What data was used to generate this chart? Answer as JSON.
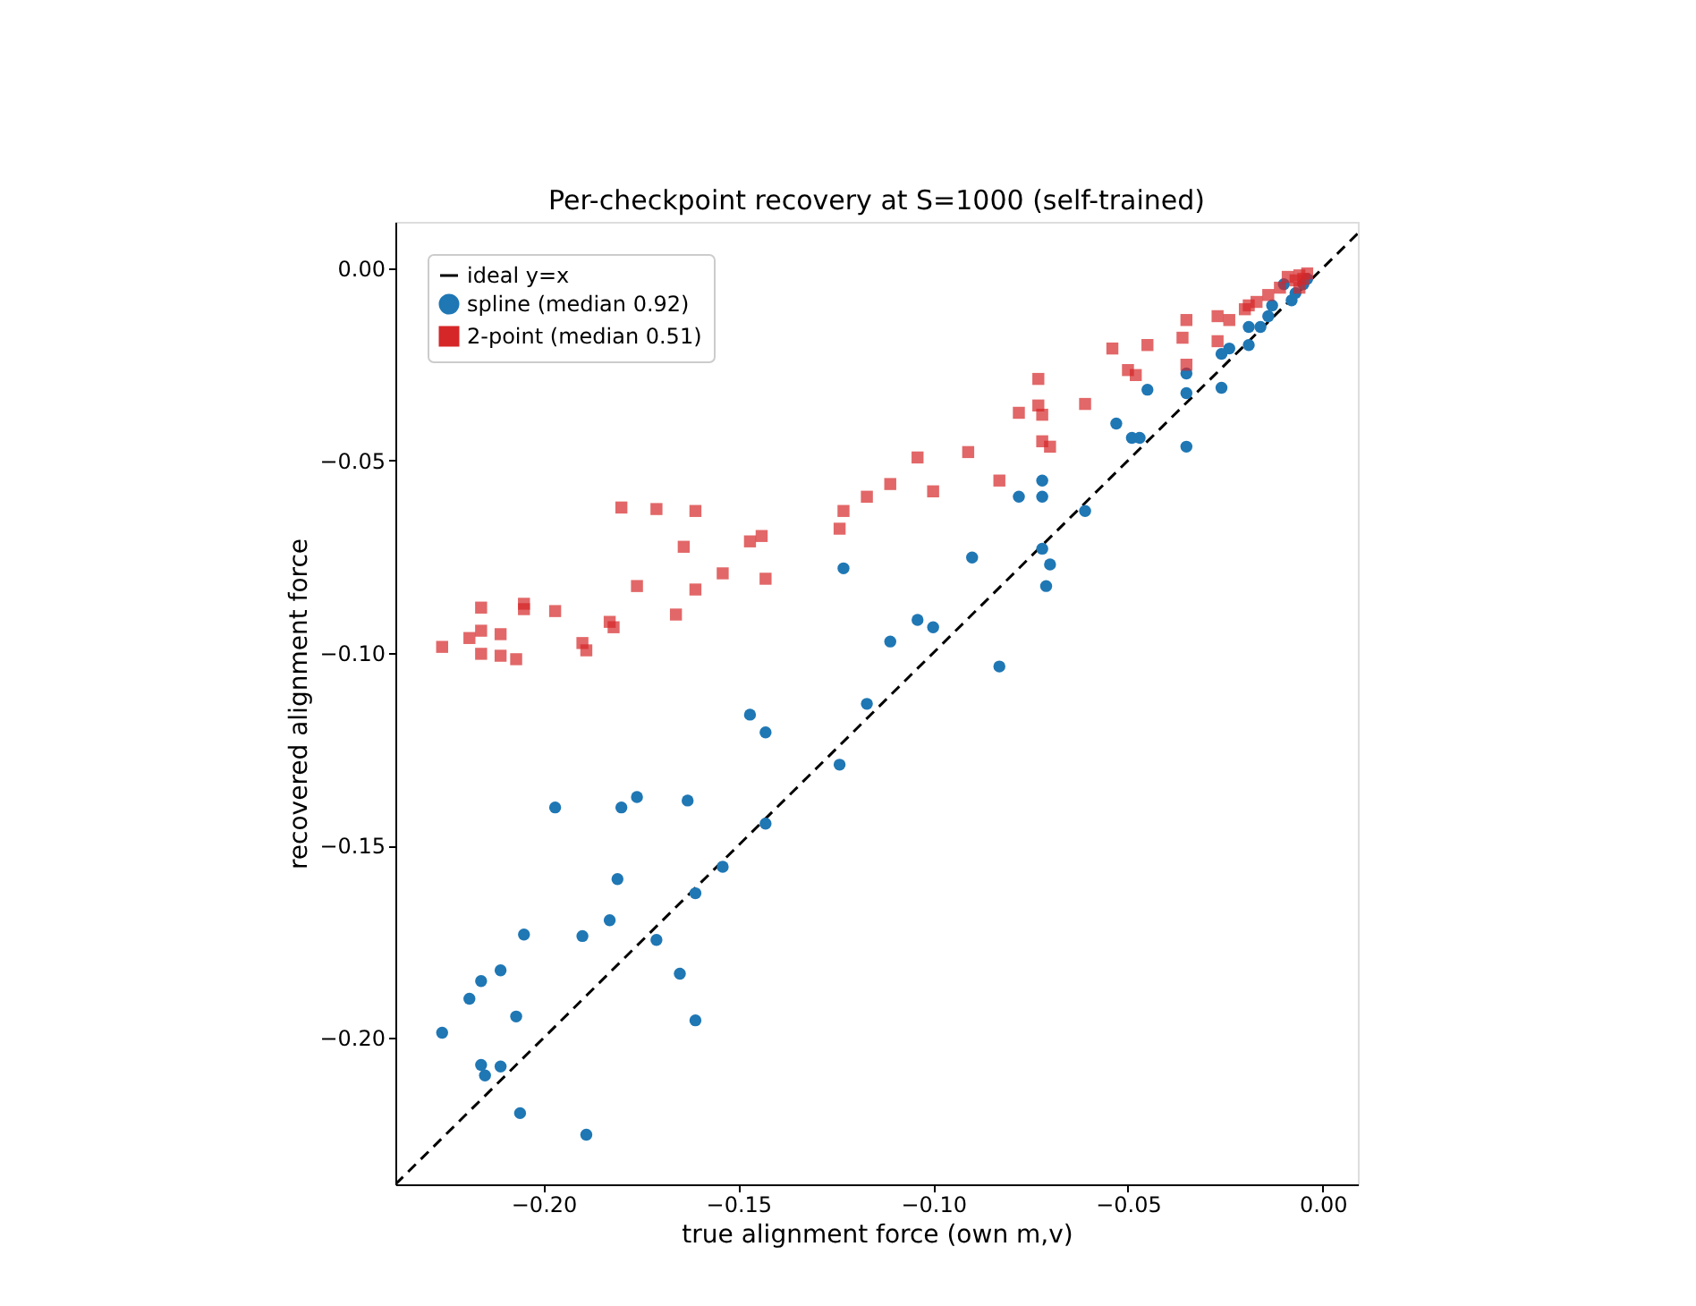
{
  "chart_data": {
    "type": "scatter",
    "title": "Per-checkpoint recovery at S=1000 (self-trained)",
    "xlabel": "true alignment force (own m,v)",
    "ylabel": "recovered alignment force",
    "xlim": [
      -0.238,
      0.009
    ],
    "ylim": [
      -0.238,
      0.012
    ],
    "xticks": [
      {
        "value": -0.2,
        "label": "−0.20"
      },
      {
        "value": -0.15,
        "label": "−0.15"
      },
      {
        "value": -0.1,
        "label": "−0.10"
      },
      {
        "value": -0.05,
        "label": "−0.05"
      },
      {
        "value": 0,
        "label": "0.00"
      }
    ],
    "yticks": [
      {
        "value": -0.2,
        "label": "−0.20"
      },
      {
        "value": -0.15,
        "label": "−0.15"
      },
      {
        "value": -0.1,
        "label": "−0.10"
      },
      {
        "value": -0.05,
        "label": "−0.05"
      },
      {
        "value": 0,
        "label": "0.00"
      }
    ],
    "grid": false,
    "legend": "top left",
    "series": [
      {
        "name": "ideal y=x",
        "type": "line",
        "color": "#000000",
        "line_style": "dashed",
        "marker": "none",
        "x": [
          -0.238,
          0.009
        ],
        "values": [
          -0.238,
          0.009
        ]
      },
      {
        "name": "spline (median 0.92)",
        "color": "#1f77b4",
        "marker": "circle",
        "x": [
          -0.226,
          -0.219,
          -0.216,
          -0.216,
          -0.215,
          -0.211,
          -0.211,
          -0.207,
          -0.206,
          -0.205,
          -0.197,
          -0.19,
          -0.189,
          -0.183,
          -0.181,
          -0.18,
          -0.176,
          -0.171,
          -0.165,
          -0.163,
          -0.161,
          -0.161,
          -0.154,
          -0.147,
          -0.143,
          -0.143,
          -0.124,
          -0.123,
          -0.117,
          -0.111,
          -0.104,
          -0.1,
          -0.09,
          -0.083,
          -0.078,
          -0.072,
          -0.072,
          -0.072,
          -0.07,
          -0.071,
          -0.061,
          -0.053,
          -0.049,
          -0.047,
          -0.045,
          -0.035,
          -0.035,
          -0.035,
          -0.026,
          -0.026,
          -0.024,
          -0.019,
          -0.019,
          -0.016,
          -0.014,
          -0.013,
          -0.01,
          -0.008,
          -0.007,
          -0.005,
          -0.004
        ],
        "values": [
          -0.1986,
          -0.1898,
          -0.1852,
          -0.207,
          -0.2097,
          -0.1824,
          -0.2074,
          -0.1944,
          -0.2195,
          -0.1731,
          -0.1401,
          -0.1735,
          -0.2251,
          -0.1694,
          -0.1587,
          -0.1401,
          -0.1374,
          -0.1745,
          -0.1833,
          -0.1383,
          -0.1624,
          -0.1954,
          -0.1555,
          -0.116,
          -0.1206,
          -0.1443,
          -0.129,
          -0.078,
          -0.1132,
          -0.097,
          -0.0914,
          -0.0933,
          -0.0752,
          -0.1035,
          -0.0594,
          -0.0552,
          -0.0594,
          -0.0729,
          -0.077,
          -0.0826,
          -0.0631,
          -0.0404,
          -0.0441,
          -0.0441,
          -0.0316,
          -0.0325,
          -0.0274,
          -0.0464,
          -0.0311,
          -0.0223,
          -0.0209,
          -0.02,
          -0.0153,
          -0.0153,
          -0.0125,
          -0.0097,
          -0.0042,
          -0.0084,
          -0.0065,
          -0.0042,
          -0.0028
        ]
      },
      {
        "name": "2-point (median 0.51)",
        "color": "#d62728",
        "marker": "square",
        "x": [
          -0.226,
          -0.219,
          -0.216,
          -0.216,
          -0.216,
          -0.211,
          -0.211,
          -0.207,
          -0.205,
          -0.205,
          -0.197,
          -0.19,
          -0.189,
          -0.183,
          -0.182,
          -0.18,
          -0.176,
          -0.171,
          -0.166,
          -0.164,
          -0.161,
          -0.161,
          -0.154,
          -0.147,
          -0.144,
          -0.143,
          -0.124,
          -0.123,
          -0.117,
          -0.111,
          -0.104,
          -0.1,
          -0.091,
          -0.083,
          -0.078,
          -0.073,
          -0.073,
          -0.072,
          -0.072,
          -0.07,
          -0.061,
          -0.054,
          -0.05,
          -0.048,
          -0.045,
          -0.035,
          -0.036,
          -0.035,
          -0.027,
          -0.027,
          -0.024,
          -0.019,
          -0.017,
          -0.02,
          -0.014,
          -0.011,
          -0.009,
          -0.007,
          -0.006,
          -0.005,
          -0.004,
          -0.006
        ],
        "values": [
          -0.0984,
          -0.0961,
          -0.0882,
          -0.0942,
          -0.1002,
          -0.0951,
          -0.1007,
          -0.1016,
          -0.0872,
          -0.0886,
          -0.0891,
          -0.0974,
          -0.0993,
          -0.0919,
          -0.0933,
          -0.0622,
          -0.0826,
          -0.0626,
          -0.09,
          -0.0724,
          -0.0631,
          -0.0835,
          -0.0793,
          -0.071,
          -0.0696,
          -0.0807,
          -0.0677,
          -0.0631,
          -0.0594,
          -0.0561,
          -0.0492,
          -0.058,
          -0.0478,
          -0.0552,
          -0.0376,
          -0.0288,
          -0.0357,
          -0.0381,
          -0.045,
          -0.0464,
          -0.0353,
          -0.0209,
          -0.0265,
          -0.0278,
          -0.02,
          -0.0135,
          -0.0181,
          -0.0251,
          -0.0125,
          -0.019,
          -0.0135,
          -0.0097,
          -0.0088,
          -0.0107,
          -0.007,
          -0.0051,
          -0.0023,
          -0.0032,
          -0.0019,
          -0.0028,
          -0.0014,
          -0.0051
        ]
      }
    ]
  }
}
